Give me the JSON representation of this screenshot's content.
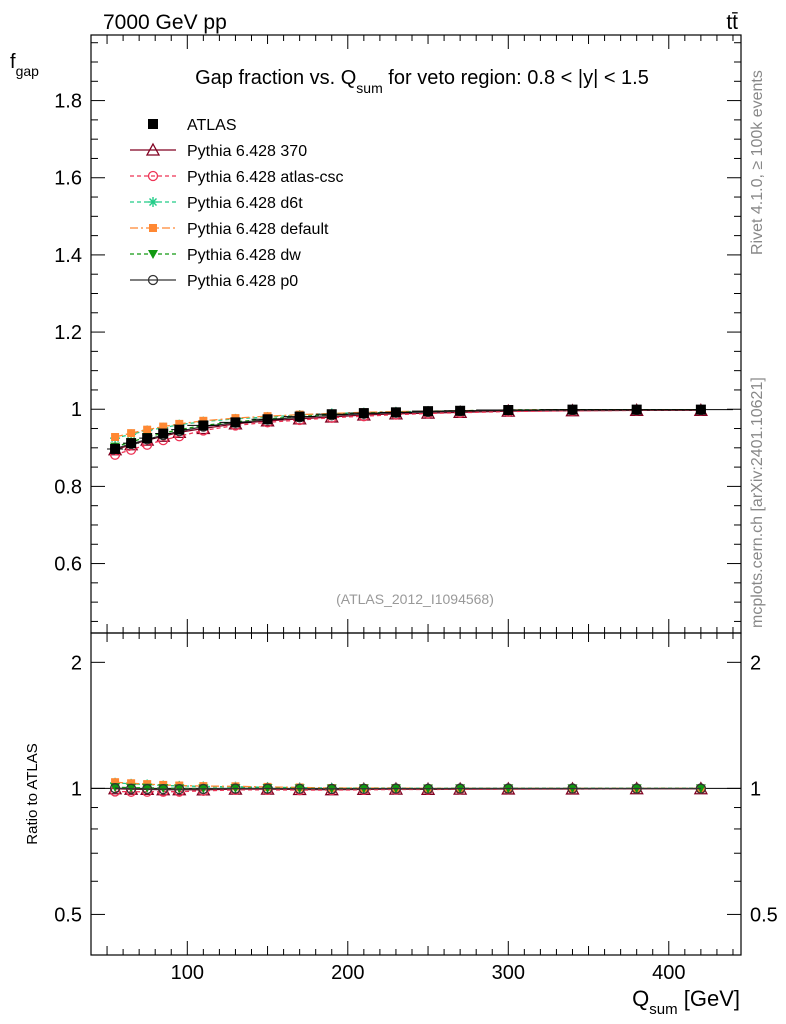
{
  "header": {
    "energy_label": "7000 GeV pp",
    "process_label": "tt̄",
    "side_label_top": "Rivet 4.1.0, ≥ 100k events",
    "side_label_bottom": "mcplots.cern.ch [arXiv:2401.10621]"
  },
  "chart_data": {
    "type": "line",
    "title_part1": "Gap fraction vs. Q",
    "title_sub": "sum",
    "title_part2": " for veto region: 0.8 < |y| < 1.5",
    "analysis_label": "(ATLAS_2012_I1094568)",
    "ylabel_main": "f",
    "ylabel_main_sub": "gap",
    "ylabel_ratio": "Ratio to ATLAS",
    "xlabel": "Q",
    "xlabel_sub": "sum",
    "xlabel_unit": " [GeV]",
    "xlim": [
      40,
      445
    ],
    "ylim_main": [
      0.42,
      1.97
    ],
    "ylim_ratio": [
      0.4,
      2.35
    ],
    "x_ticks": [
      100,
      200,
      300,
      400
    ],
    "y_ticks_main": [
      0.6,
      0.8,
      1,
      1.2,
      1.4,
      1.6,
      1.8
    ],
    "y_tick_labels_main": [
      "0.6",
      "0.8",
      "1",
      "1.2",
      "1.4",
      "1.6",
      "1.8"
    ],
    "y_ticks_ratio": [
      0.5,
      1,
      2
    ],
    "y_tick_labels_ratio": [
      "0.5",
      "1",
      "2"
    ],
    "x": [
      55,
      65,
      75,
      85,
      95,
      110,
      130,
      150,
      170,
      190,
      210,
      230,
      250,
      270,
      300,
      340,
      380,
      420
    ],
    "x_err": [
      5,
      5,
      5,
      5,
      5,
      10,
      10,
      10,
      10,
      10,
      10,
      10,
      10,
      10,
      20,
      20,
      20,
      20
    ],
    "data": {
      "name": "ATLAS",
      "values": [
        0.897,
        0.912,
        0.925,
        0.937,
        0.947,
        0.958,
        0.966,
        0.974,
        0.981,
        0.987,
        0.99,
        0.992,
        0.995,
        0.996,
        0.998,
        0.999,
        0.999,
        0.999
      ]
    },
    "series": [
      {
        "name": "Pythia 6.428 370",
        "color": "#800020",
        "marker": "triangle-open",
        "dash": "",
        "values": [
          0.895,
          0.908,
          0.92,
          0.93,
          0.94,
          0.95,
          0.962,
          0.97,
          0.975,
          0.98,
          0.985,
          0.988,
          0.99,
          0.992,
          0.995,
          0.996,
          0.997,
          0.997
        ]
      },
      {
        "name": "Pythia 6.428 atlas-csc",
        "color": "#ee3355",
        "marker": "circle-open",
        "dash": "4,3",
        "values": [
          0.882,
          0.895,
          0.908,
          0.92,
          0.93,
          0.945,
          0.958,
          0.966,
          0.972,
          0.978,
          0.982,
          0.986,
          0.989,
          0.991,
          0.994,
          0.996,
          0.997,
          0.997
        ]
      },
      {
        "name": "Pythia 6.428 d6t",
        "color": "#22cc88",
        "marker": "star",
        "dash": "4,3",
        "values": [
          0.925,
          0.935,
          0.945,
          0.952,
          0.96,
          0.968,
          0.975,
          0.98,
          0.985,
          0.989,
          0.991,
          0.993,
          0.995,
          0.996,
          0.998,
          0.999,
          0.999,
          0.999
        ]
      },
      {
        "name": "Pythia 6.428 default",
        "color": "#ff8833",
        "marker": "square",
        "dash": "8,3,2,3",
        "values": [
          0.928,
          0.938,
          0.947,
          0.955,
          0.962,
          0.97,
          0.977,
          0.982,
          0.986,
          0.989,
          0.992,
          0.994,
          0.995,
          0.996,
          0.998,
          0.999,
          0.999,
          0.999
        ]
      },
      {
        "name": "Pythia 6.428 dw",
        "color": "#119911",
        "marker": "triangle-down",
        "dash": "4,3",
        "values": [
          0.903,
          0.915,
          0.928,
          0.938,
          0.947,
          0.958,
          0.967,
          0.975,
          0.981,
          0.986,
          0.99,
          0.992,
          0.994,
          0.996,
          0.998,
          0.999,
          0.999,
          0.999
        ]
      },
      {
        "name": "Pythia 6.428 p0",
        "color": "#333333",
        "marker": "circle-open",
        "dash": "",
        "values": [
          0.898,
          0.91,
          0.922,
          0.933,
          0.943,
          0.955,
          0.965,
          0.973,
          0.979,
          0.984,
          0.988,
          0.991,
          0.993,
          0.995,
          0.997,
          0.998,
          0.998,
          0.998
        ]
      }
    ]
  }
}
